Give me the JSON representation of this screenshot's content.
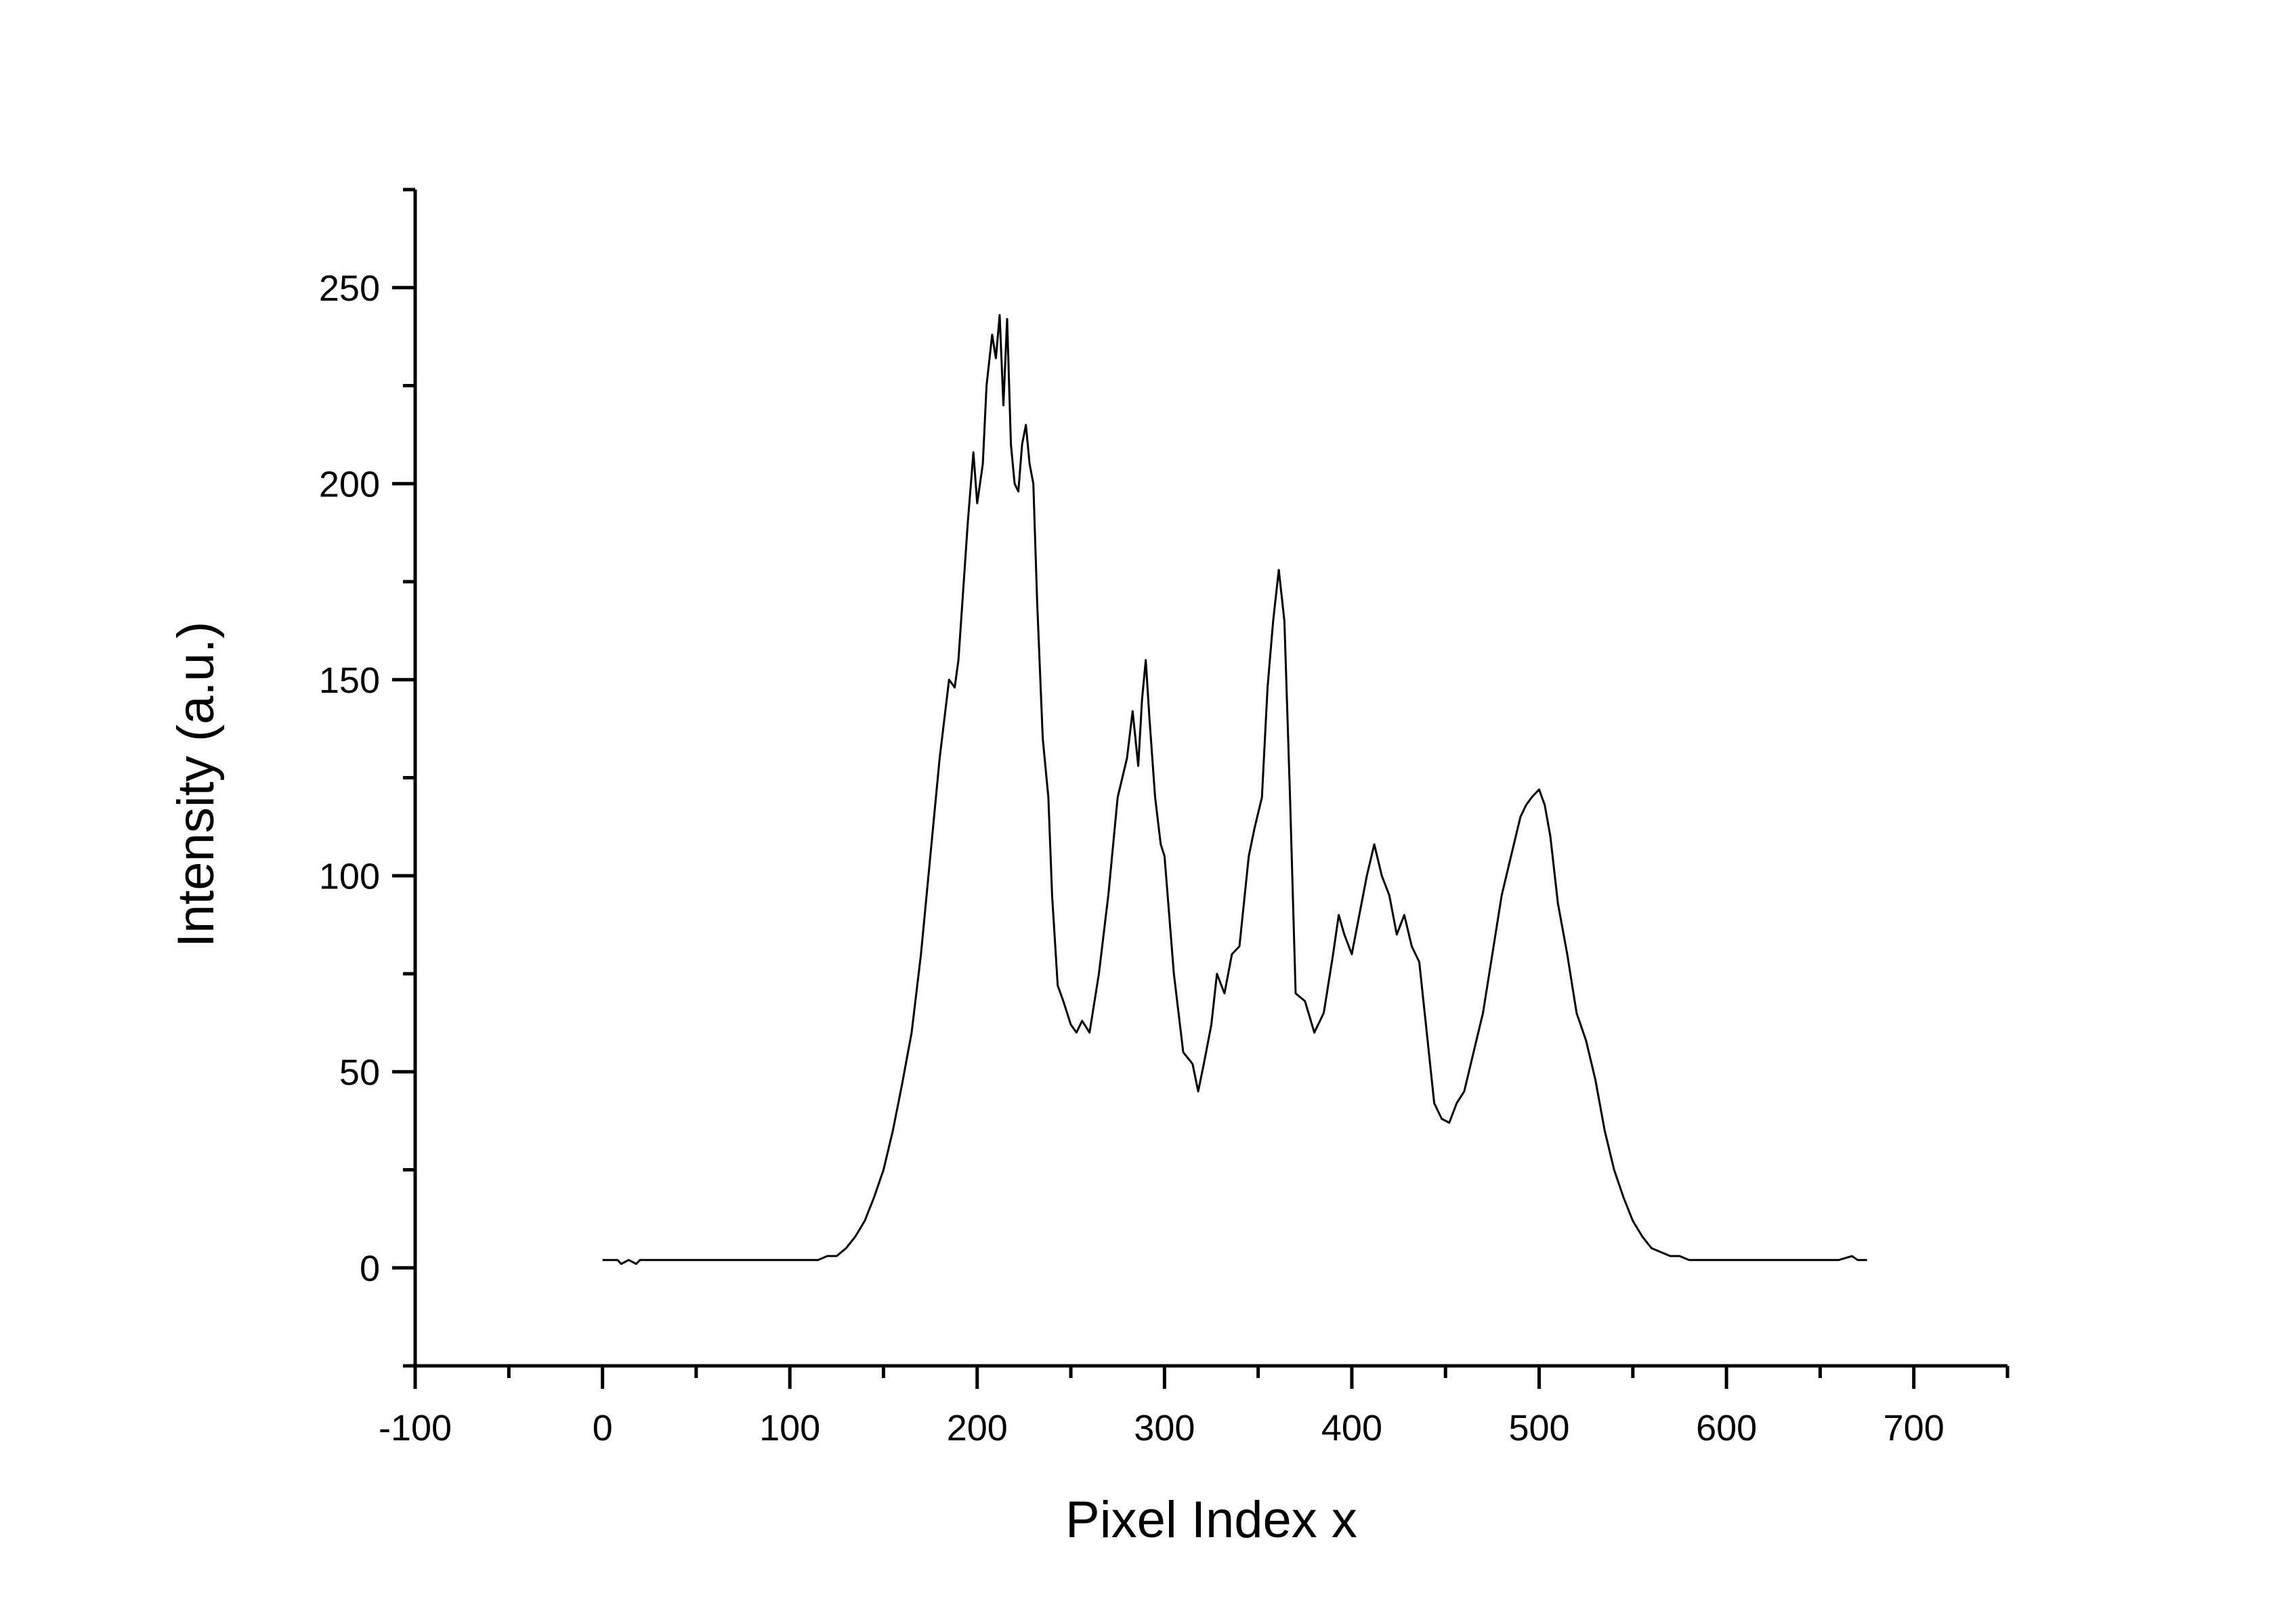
{
  "chart_data": {
    "type": "line",
    "title": "",
    "xlabel": "Pixel Index x",
    "ylabel": "Intensity (a.u.)",
    "xlim": [
      -100,
      750
    ],
    "ylim": [
      -25,
      275
    ],
    "x_ticks": [
      -100,
      0,
      100,
      200,
      300,
      400,
      500,
      600,
      700
    ],
    "x_tick_labels": [
      "-100",
      "0",
      "100",
      "200",
      "300",
      "400",
      "500",
      "600",
      "700"
    ],
    "y_ticks": [
      0,
      50,
      100,
      150,
      200,
      250
    ],
    "y_tick_labels": [
      "0",
      "50",
      "100",
      "150",
      "200",
      "250"
    ],
    "x_minor_step": 50,
    "y_minor_step": 25,
    "grid": false,
    "legend": "none",
    "line_color": "#000000",
    "series": [
      {
        "x": [
          0,
          8,
          10,
          14,
          18,
          20,
          30,
          60,
          90,
          100,
          105,
          110,
          115,
          120,
          125,
          130,
          135,
          140,
          145,
          150,
          155,
          160,
          165,
          170,
          175,
          180,
          185,
          188,
          190,
          195,
          198,
          200,
          203,
          205,
          208,
          210,
          212,
          214,
          216,
          218,
          220,
          222,
          224,
          226,
          228,
          230,
          232,
          235,
          238,
          240,
          243,
          246,
          250,
          253,
          256,
          260,
          265,
          270,
          275,
          280,
          283,
          286,
          288,
          290,
          292,
          295,
          298,
          300,
          305,
          310,
          315,
          318,
          321,
          325,
          328,
          332,
          336,
          340,
          345,
          348,
          352,
          355,
          358,
          361,
          364,
          367,
          370,
          375,
          380,
          385,
          390,
          393,
          396,
          400,
          404,
          408,
          412,
          416,
          420,
          424,
          428,
          432,
          436,
          440,
          444,
          448,
          452,
          456,
          460,
          465,
          470,
          475,
          480,
          485,
          490,
          493,
          496,
          500,
          503,
          506,
          510,
          515,
          520,
          525,
          530,
          535,
          540,
          545,
          550,
          555,
          560,
          565,
          570,
          575,
          580,
          585,
          590,
          600,
          610,
          620,
          630,
          640,
          650,
          660,
          667,
          670,
          675
        ],
        "y": [
          2,
          2,
          1,
          2,
          1,
          2,
          2,
          2,
          2,
          2,
          2,
          2,
          2,
          3,
          3,
          5,
          8,
          12,
          18,
          25,
          35,
          47,
          60,
          80,
          105,
          130,
          150,
          148,
          155,
          190,
          208,
          195,
          205,
          225,
          238,
          232,
          243,
          220,
          242,
          210,
          200,
          198,
          210,
          215,
          205,
          200,
          170,
          135,
          120,
          95,
          72,
          68,
          62,
          60,
          63,
          60,
          75,
          95,
          120,
          130,
          142,
          128,
          145,
          155,
          140,
          120,
          108,
          105,
          75,
          55,
          52,
          45,
          52,
          62,
          75,
          70,
          80,
          82,
          105,
          112,
          120,
          148,
          165,
          178,
          165,
          120,
          70,
          68,
          60,
          65,
          80,
          90,
          85,
          80,
          90,
          100,
          108,
          100,
          95,
          85,
          90,
          82,
          78,
          60,
          42,
          38,
          37,
          42,
          45,
          55,
          65,
          80,
          95,
          105,
          115,
          118,
          120,
          122,
          118,
          110,
          93,
          80,
          65,
          58,
          48,
          35,
          25,
          18,
          12,
          8,
          5,
          4,
          3,
          3,
          2,
          2,
          2,
          2,
          2,
          2,
          2,
          2,
          2,
          2,
          3,
          2,
          2
        ]
      }
    ]
  }
}
